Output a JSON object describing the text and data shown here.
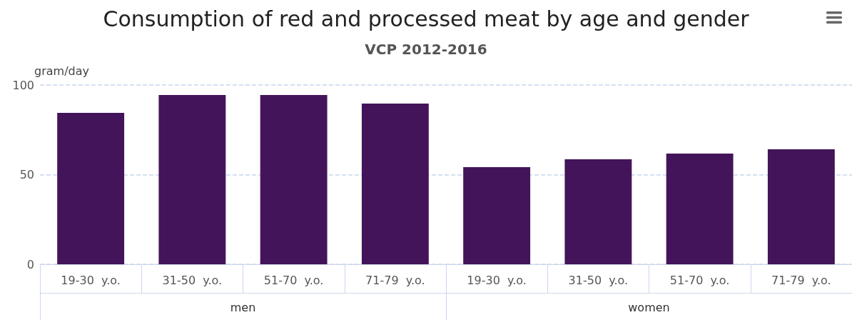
{
  "chart_data": {
    "type": "bar",
    "title": "Consumption of red and processed meat by age and gender",
    "subtitle": "VCP 2012-2016",
    "ylabel": "gram/day",
    "categories": [
      "19-30  y.o.",
      "31-50  y.o.",
      "51-70  y.o.",
      "71-79  y.o.",
      "19-30  y.o.",
      "31-50  y.o.",
      "51-70  y.o.",
      "71-79  y.o."
    ],
    "values": [
      84.5,
      94.4,
      94.4,
      89.6,
      54.2,
      58.6,
      61.8,
      64.1
    ],
    "color": "#43145a",
    "ylim": [
      0,
      100
    ],
    "yticks": [
      0,
      50,
      100
    ],
    "grid": "y",
    "annotations": [
      "men",
      "women"
    ]
  }
}
